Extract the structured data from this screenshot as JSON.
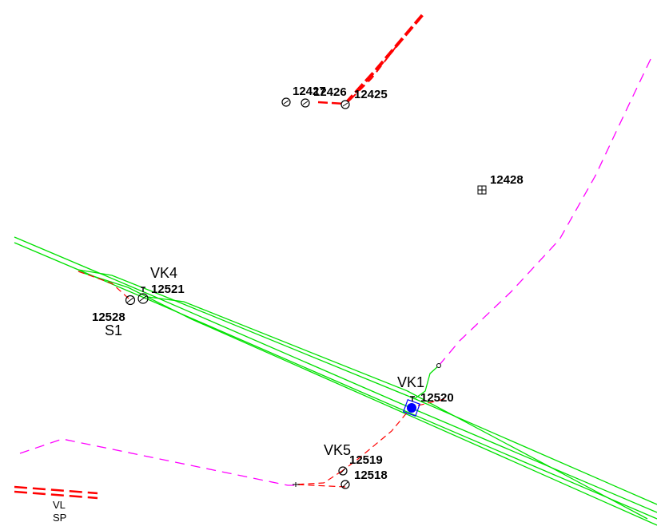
{
  "colors": {
    "background": "#ffffff",
    "red_pipe": "#ff0000",
    "green_lines": "#00e000",
    "magenta_dash": "#ff00ff",
    "blue_node": "#0000ff",
    "text": "#000000"
  },
  "labels": {
    "n12427": "12427",
    "n12426": "12426",
    "n12425": "12425",
    "n12428": "12428",
    "vk4": "VK4",
    "n12521": "12521",
    "n12528": "12528",
    "s1": "S1",
    "vk1": "VK1",
    "n12520": "12520",
    "vk5": "VK5",
    "n12519": "12519",
    "n12518": "12518",
    "vl": "VL",
    "sp": "SP"
  },
  "icons": {
    "manhole": "circle-node-icon",
    "grid_node": "boxed-cross-icon",
    "valve": "valve-icon",
    "blue_node": "filled-circle-icon"
  }
}
